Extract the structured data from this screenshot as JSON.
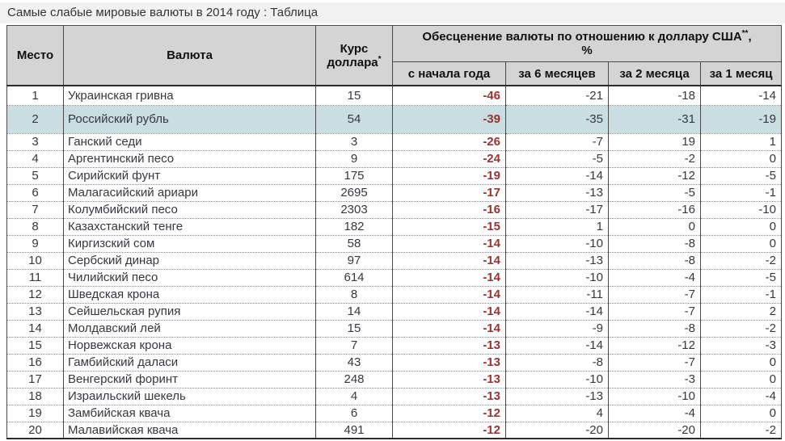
{
  "colors": {
    "title_bg": "#f1f1f1",
    "header_bg": "#d4d4d4",
    "highlight_row_bg": "#c9dde2",
    "ytd_value_color": "#993333",
    "body_text": "#37373f",
    "grid_line": "#4a4a4a"
  },
  "chart_data": {
    "type": "table",
    "title": "Самые слабые мировые валюты в 2014 году : Таблица",
    "headers": {
      "place": "Место",
      "currency": "Валюта",
      "rate": "Курс доллара",
      "rate_marker": "*",
      "group": "Обесценение валюты по отношению к доллару США",
      "group_marker": "**",
      "group_suffix": ",",
      "group_unit": "%",
      "sub": [
        "с начала года",
        "за 6 месяцев",
        "за 2 месяца",
        "за 1 месяц"
      ]
    },
    "highlighted_row_place": 2,
    "rows": [
      {
        "place": 1,
        "currency": "Украинская гривна",
        "rate": 15,
        "ytd": -46,
        "m6": -21,
        "m2": -18,
        "m1": -14,
        "highlighted": false
      },
      {
        "place": 2,
        "currency": "Российский рубль",
        "rate": 54,
        "ytd": -39,
        "m6": -35,
        "m2": -31,
        "m1": -19,
        "highlighted": true
      },
      {
        "place": 3,
        "currency": "Ганский седи",
        "rate": 3,
        "ytd": -26,
        "m6": -7,
        "m2": 19,
        "m1": 1,
        "highlighted": false
      },
      {
        "place": 4,
        "currency": "Аргентинский песо",
        "rate": 9,
        "ytd": -24,
        "m6": -5,
        "m2": -2,
        "m1": 0,
        "highlighted": false
      },
      {
        "place": 5,
        "currency": "Сирийский фунт",
        "rate": 175,
        "ytd": -19,
        "m6": -14,
        "m2": -12,
        "m1": -5,
        "highlighted": false
      },
      {
        "place": 6,
        "currency": "Малагасийский ариари",
        "rate": 2695,
        "ytd": -17,
        "m6": -13,
        "m2": -5,
        "m1": -1,
        "highlighted": false
      },
      {
        "place": 7,
        "currency": "Колумбийский песо",
        "rate": 2303,
        "ytd": -16,
        "m6": -17,
        "m2": -16,
        "m1": -10,
        "highlighted": false
      },
      {
        "place": 8,
        "currency": "Казахстанский тенге",
        "rate": 182,
        "ytd": -15,
        "m6": 1,
        "m2": 0,
        "m1": 0,
        "highlighted": false
      },
      {
        "place": 9,
        "currency": "Киргизский сом",
        "rate": 58,
        "ytd": -14,
        "m6": -10,
        "m2": -8,
        "m1": 0,
        "highlighted": false
      },
      {
        "place": 10,
        "currency": "Сербский динар",
        "rate": 97,
        "ytd": -14,
        "m6": -13,
        "m2": -8,
        "m1": -2,
        "highlighted": false
      },
      {
        "place": 11,
        "currency": "Чилийский песо",
        "rate": 614,
        "ytd": -14,
        "m6": -10,
        "m2": -4,
        "m1": -5,
        "highlighted": false
      },
      {
        "place": 12,
        "currency": "Шведская крона",
        "rate": 8,
        "ytd": -14,
        "m6": -11,
        "m2": -7,
        "m1": -1,
        "highlighted": false
      },
      {
        "place": 13,
        "currency": "Сейшельская рупия",
        "rate": 14,
        "ytd": -14,
        "m6": -14,
        "m2": -7,
        "m1": 2,
        "highlighted": false
      },
      {
        "place": 14,
        "currency": "Молдавский лей",
        "rate": 15,
        "ytd": -14,
        "m6": -9,
        "m2": -8,
        "m1": -2,
        "highlighted": false
      },
      {
        "place": 15,
        "currency": "Норвежская крона",
        "rate": 7,
        "ytd": -13,
        "m6": -14,
        "m2": -12,
        "m1": -3,
        "highlighted": false
      },
      {
        "place": 16,
        "currency": "Гамбийский даласи",
        "rate": 43,
        "ytd": -13,
        "m6": -8,
        "m2": -7,
        "m1": 0,
        "highlighted": false
      },
      {
        "place": 17,
        "currency": "Венгерский форинт",
        "rate": 248,
        "ytd": -13,
        "m6": -10,
        "m2": -3,
        "m1": 0,
        "highlighted": false
      },
      {
        "place": 18,
        "currency": "Израильский шекель",
        "rate": 4,
        "ytd": -13,
        "m6": -13,
        "m2": -10,
        "m1": -4,
        "highlighted": false
      },
      {
        "place": 19,
        "currency": "Замбийская квача",
        "rate": 6,
        "ytd": -12,
        "m6": 4,
        "m2": -4,
        "m1": 0,
        "highlighted": false
      },
      {
        "place": 20,
        "currency": "Малавийская квача",
        "rate": 491,
        "ytd": -12,
        "m6": -20,
        "m2": -20,
        "m1": -2,
        "highlighted": false
      }
    ]
  }
}
